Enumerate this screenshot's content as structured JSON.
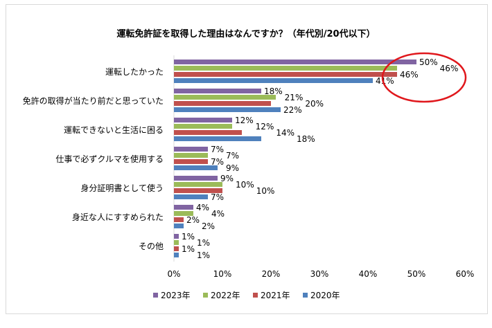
{
  "chart_data": {
    "type": "bar",
    "orientation": "horizontal",
    "title": "運転免許証を取得した理由はなんですか？（年代別/20代以下）",
    "categories": [
      "運転したかった",
      "免許の取得が当たり前だと思っていた",
      "運転できないと生活に困る",
      "仕事で必ずクルマを使用する",
      "身分証明書として使う",
      "身近な人にすすめられた",
      "その他"
    ],
    "series": [
      {
        "name": "2023年",
        "color": "#8064a2",
        "values": [
          50,
          18,
          12,
          7,
          9,
          4,
          1
        ]
      },
      {
        "name": "2022年",
        "color": "#9bbb59",
        "values": [
          46,
          21,
          12,
          7,
          10,
          4,
          1
        ]
      },
      {
        "name": "2021年",
        "color": "#c0504d",
        "values": [
          46,
          20,
          14,
          7,
          10,
          2,
          1
        ]
      },
      {
        "name": "2020年",
        "color": "#4f81bd",
        "values": [
          41,
          22,
          18,
          9,
          7,
          2,
          1
        ]
      }
    ],
    "xlim": [
      0,
      60
    ],
    "xticks": [
      "0%",
      "10%",
      "20%",
      "30%",
      "40%",
      "50%",
      "60%"
    ],
    "legend": "bottom",
    "annotation": "red ellipse highlighting 運転したかった values"
  }
}
